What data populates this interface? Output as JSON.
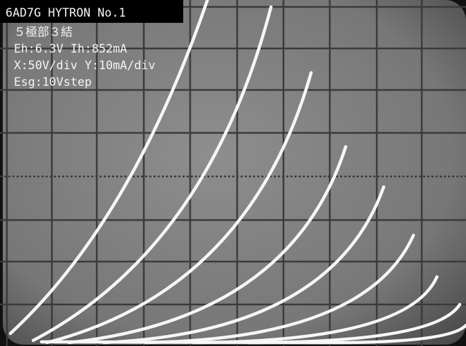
{
  "overlay": {
    "title": "6AD7G HYTRON No.1",
    "lines": [
      "５極部３結",
      "Eh:6.3V Ih:852mA",
      "X:50V/div Y:10mA/div",
      "Esg:10Vstep"
    ]
  }
}
